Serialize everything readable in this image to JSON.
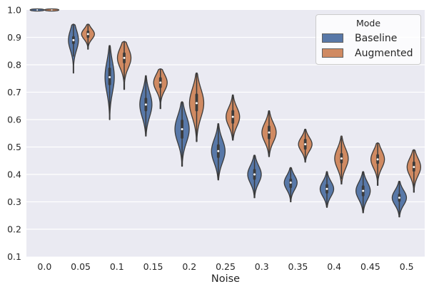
{
  "figure": {
    "background": "#ffffff",
    "plot_background": "#eaeaf2",
    "grid_color": "#ffffff",
    "text_color": "#262626"
  },
  "legend": {
    "title": "Mode",
    "entries": [
      {
        "label": "Baseline",
        "color": "#5878a8"
      },
      {
        "label": "Augmented",
        "color": "#d08a62"
      }
    ]
  },
  "chart_data": {
    "type": "violin",
    "title": "",
    "xlabel": "Noise",
    "ylabel": "",
    "legend_title": "Mode",
    "legend_position": "upper right",
    "grid": "horizontal",
    "x_categories": [
      "0.0",
      "0.05",
      "0.1",
      "0.15",
      "0.2",
      "0.25",
      "0.3",
      "0.35",
      "0.4",
      "0.45",
      "0.5"
    ],
    "y_tick_labels": [
      "0.1",
      "0.2",
      "0.3",
      "0.4",
      "0.5",
      "0.6",
      "0.7",
      "0.8",
      "0.9",
      "1.0"
    ],
    "y_ticks": [
      0.1,
      0.2,
      0.3,
      0.4,
      0.5,
      0.6,
      0.7,
      0.8,
      0.9,
      1.0
    ],
    "ylim": [
      0.1,
      1.0
    ],
    "edge_color": "#3b3b3b",
    "median_dot_color": "#ffffff",
    "series": [
      {
        "name": "Baseline",
        "color": "#5878a8",
        "violins": [
          {
            "noise": "0.0",
            "med": 1.0,
            "q1": 1.0,
            "q3": 1.0,
            "lo": 0.998,
            "hi": 1.002,
            "hw": 10
          },
          {
            "noise": "0.05",
            "med": 0.89,
            "q1": 0.875,
            "q3": 0.905,
            "lo": 0.77,
            "hi": 0.948,
            "hw": 7
          },
          {
            "noise": "0.1",
            "med": 0.755,
            "q1": 0.725,
            "q3": 0.79,
            "lo": 0.6,
            "hi": 0.87,
            "hw": 6.5
          },
          {
            "noise": "0.15",
            "med": 0.655,
            "q1": 0.63,
            "q3": 0.68,
            "lo": 0.54,
            "hi": 0.76,
            "hw": 8.5
          },
          {
            "noise": "0.2",
            "med": 0.565,
            "q1": 0.53,
            "q3": 0.6,
            "lo": 0.43,
            "hi": 0.665,
            "hw": 10
          },
          {
            "noise": "0.25",
            "med": 0.485,
            "q1": 0.46,
            "q3": 0.51,
            "lo": 0.38,
            "hi": 0.585,
            "hw": 9.5
          },
          {
            "noise": "0.3",
            "med": 0.4,
            "q1": 0.38,
            "q3": 0.42,
            "lo": 0.315,
            "hi": 0.47,
            "hw": 9.5
          },
          {
            "noise": "0.35",
            "med": 0.37,
            "q1": 0.35,
            "q3": 0.385,
            "lo": 0.3,
            "hi": 0.425,
            "hw": 9
          },
          {
            "noise": "0.4",
            "med": 0.347,
            "q1": 0.33,
            "q3": 0.365,
            "lo": 0.28,
            "hi": 0.41,
            "hw": 9.5
          },
          {
            "noise": "0.45",
            "med": 0.34,
            "q1": 0.32,
            "q3": 0.36,
            "lo": 0.26,
            "hi": 0.41,
            "hw": 10
          },
          {
            "noise": "0.5",
            "med": 0.315,
            "q1": 0.3,
            "q3": 0.33,
            "lo": 0.245,
            "hi": 0.375,
            "hw": 10
          }
        ]
      },
      {
        "name": "Augmented",
        "color": "#d08a62",
        "violins": [
          {
            "noise": "0.0",
            "med": 1.0,
            "q1": 1.0,
            "q3": 1.0,
            "lo": 0.998,
            "hi": 1.002,
            "hw": 10
          },
          {
            "noise": "0.05",
            "med": 0.912,
            "q1": 0.898,
            "q3": 0.925,
            "lo": 0.857,
            "hi": 0.948,
            "hw": 9
          },
          {
            "noise": "0.1",
            "med": 0.825,
            "q1": 0.805,
            "q3": 0.845,
            "lo": 0.71,
            "hi": 0.885,
            "hw": 9.5
          },
          {
            "noise": "0.15",
            "med": 0.735,
            "q1": 0.715,
            "q3": 0.755,
            "lo": 0.64,
            "hi": 0.785,
            "hw": 9.5
          },
          {
            "noise": "0.2",
            "med": 0.66,
            "q1": 0.63,
            "q3": 0.695,
            "lo": 0.52,
            "hi": 0.77,
            "hw": 10
          },
          {
            "noise": "0.25",
            "med": 0.61,
            "q1": 0.585,
            "q3": 0.635,
            "lo": 0.525,
            "hi": 0.69,
            "hw": 9.5
          },
          {
            "noise": "0.3",
            "med": 0.553,
            "q1": 0.528,
            "q3": 0.578,
            "lo": 0.465,
            "hi": 0.632,
            "hw": 10
          },
          {
            "noise": "0.35",
            "med": 0.51,
            "q1": 0.49,
            "q3": 0.53,
            "lo": 0.445,
            "hi": 0.565,
            "hw": 9.5
          },
          {
            "noise": "0.4",
            "med": 0.458,
            "q1": 0.44,
            "q3": 0.478,
            "lo": 0.365,
            "hi": 0.54,
            "hw": 9.5
          },
          {
            "noise": "0.45",
            "med": 0.455,
            "q1": 0.438,
            "q3": 0.474,
            "lo": 0.36,
            "hi": 0.515,
            "hw": 9.5
          },
          {
            "noise": "0.5",
            "med": 0.427,
            "q1": 0.41,
            "q3": 0.447,
            "lo": 0.335,
            "hi": 0.49,
            "hw": 9.5
          }
        ]
      }
    ]
  }
}
